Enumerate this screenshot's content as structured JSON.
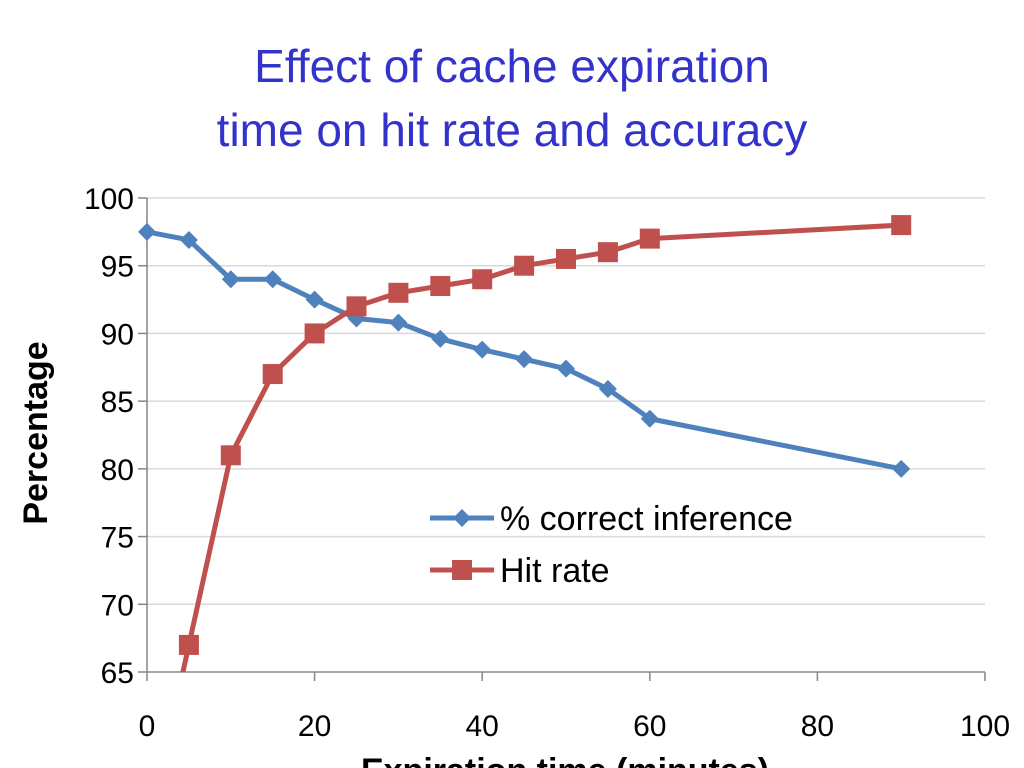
{
  "chart_data": {
    "type": "line",
    "title_lines": [
      "Effect of cache expiration",
      "time on hit rate and accuracy"
    ],
    "xlabel": "Expiration time (minutes)",
    "ylabel": "Percentage",
    "xlim": [
      0,
      100
    ],
    "ylim": [
      65,
      100
    ],
    "x_ticks": [
      0,
      20,
      40,
      60,
      80,
      100
    ],
    "y_ticks": [
      65,
      70,
      75,
      80,
      85,
      90,
      95,
      100
    ],
    "grid": "horizontal",
    "legend_position": "center-right",
    "series": [
      {
        "name": "% correct inference",
        "color": "#4f81bd",
        "marker": "diamond",
        "x": [
          0,
          5,
          10,
          15,
          20,
          25,
          30,
          35,
          40,
          45,
          50,
          55,
          60,
          90
        ],
        "y": [
          97.5,
          96.9,
          94.0,
          94.0,
          92.5,
          91.1,
          90.8,
          89.6,
          88.8,
          88.1,
          87.4,
          85.9,
          83.7,
          80.0
        ]
      },
      {
        "name": "Hit rate",
        "color": "#c0504d",
        "marker": "square",
        "x": [
          5,
          10,
          15,
          20,
          25,
          30,
          35,
          40,
          45,
          50,
          55,
          60,
          90
        ],
        "y": [
          67,
          81,
          87,
          90,
          92,
          93,
          93.5,
          94,
          95,
          95.5,
          96,
          97,
          98
        ]
      }
    ]
  }
}
